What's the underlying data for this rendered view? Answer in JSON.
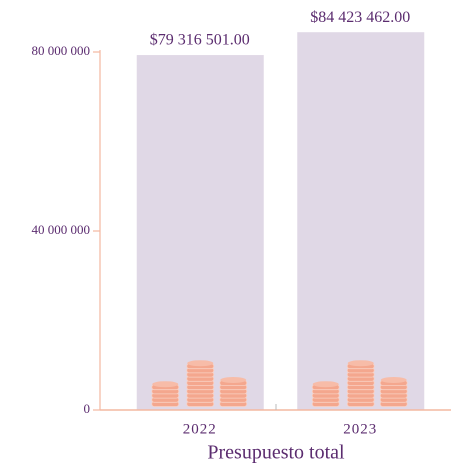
{
  "chart_data": {
    "type": "bar",
    "x_label": "Presupuesto total",
    "categories": [
      "2022",
      "2023"
    ],
    "values": [
      79316501,
      84423462
    ],
    "value_labels": [
      "$79 316 501.00",
      "$84 423 462.00"
    ],
    "color": "#e0d8e6",
    "ylim": [
      0,
      80000000
    ],
    "yticks": [
      0,
      {
        "value": 40000000,
        "label": "40 000 000"
      },
      {
        "value": 80000000,
        "label": "80 000 000"
      }
    ]
  }
}
